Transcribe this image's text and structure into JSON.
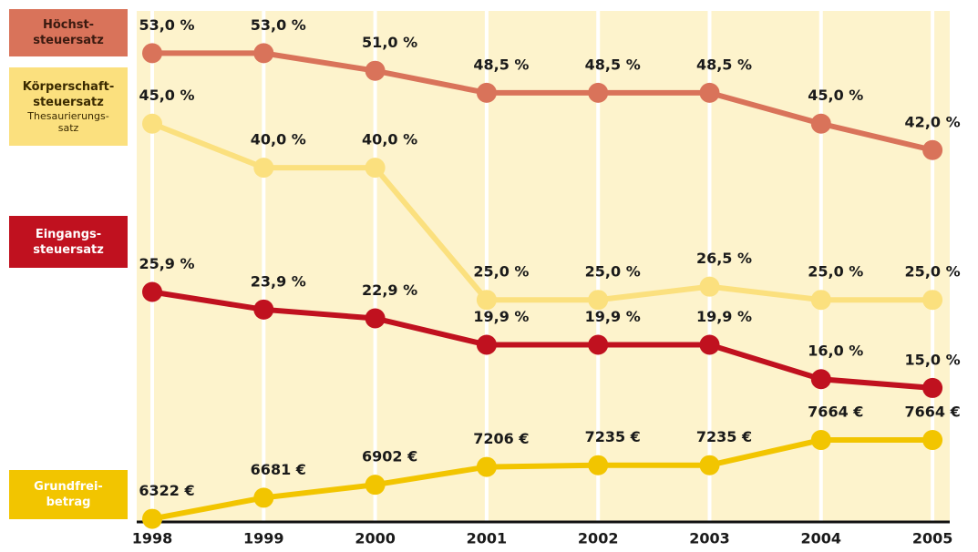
{
  "chart_data": {
    "type": "line",
    "categories": [
      "1998",
      "1999",
      "2000",
      "2001",
      "2002",
      "2003",
      "2004",
      "2005"
    ],
    "ylim": [
      0,
      58
    ],
    "y2lim": [
      6300,
      15000
    ],
    "series": [
      {
        "name": "Höchst-\nsteuersatz",
        "color": "#d9735a",
        "legend_color": "#d9735a",
        "legend_text": "#3a1a10",
        "values": [
          53.0,
          53.0,
          51.0,
          48.5,
          48.5,
          48.5,
          45.0,
          42.0
        ],
        "value_labels": [
          "53,0 %",
          "53,0 %",
          "51,0 %",
          "48,5 %",
          "48,5 %",
          "48,5 %",
          "45,0 %",
          "42,0 %"
        ]
      },
      {
        "name": "Körperschaft-\nsteuersatz",
        "sublabel": "Thesaurierungs-\nsatz",
        "color": "#fbe07e",
        "legend_color": "#fbe07e",
        "legend_text": "#3a2a00",
        "values": [
          45.0,
          40.0,
          40.0,
          25.0,
          25.0,
          26.5,
          25.0,
          25.0
        ],
        "value_labels": [
          "45,0 %",
          "40,0 %",
          "40,0 %",
          "25,0 %",
          "25,0 %",
          "26,5 %",
          "25,0 %",
          "25,0 %"
        ]
      },
      {
        "name": "Eingangs-\nsteuersatz",
        "color": "#c0111f",
        "legend_color": "#c0111f",
        "legend_text": "#ffffff",
        "values": [
          25.9,
          23.9,
          22.9,
          19.9,
          19.9,
          19.9,
          16.0,
          15.0
        ],
        "value_labels": [
          "25,9 %",
          "23,9 %",
          "22,9 %",
          "19,9 %",
          "19,9 %",
          "19,9 %",
          "16,0 %",
          "15,0 %"
        ]
      },
      {
        "name": "Grundfrei-\nbetrag",
        "color": "#f2c500",
        "legend_color": "#f2c500",
        "legend_text": "#ffffff",
        "axis": "y2",
        "values": [
          6322,
          6681,
          6902,
          7206,
          7235,
          7235,
          7664,
          7664
        ],
        "value_labels": [
          "6322 €",
          "6681 €",
          "6902 €",
          "7206 €",
          "7235 €",
          "7235 €",
          "7664 €",
          "7664 €"
        ]
      }
    ]
  }
}
